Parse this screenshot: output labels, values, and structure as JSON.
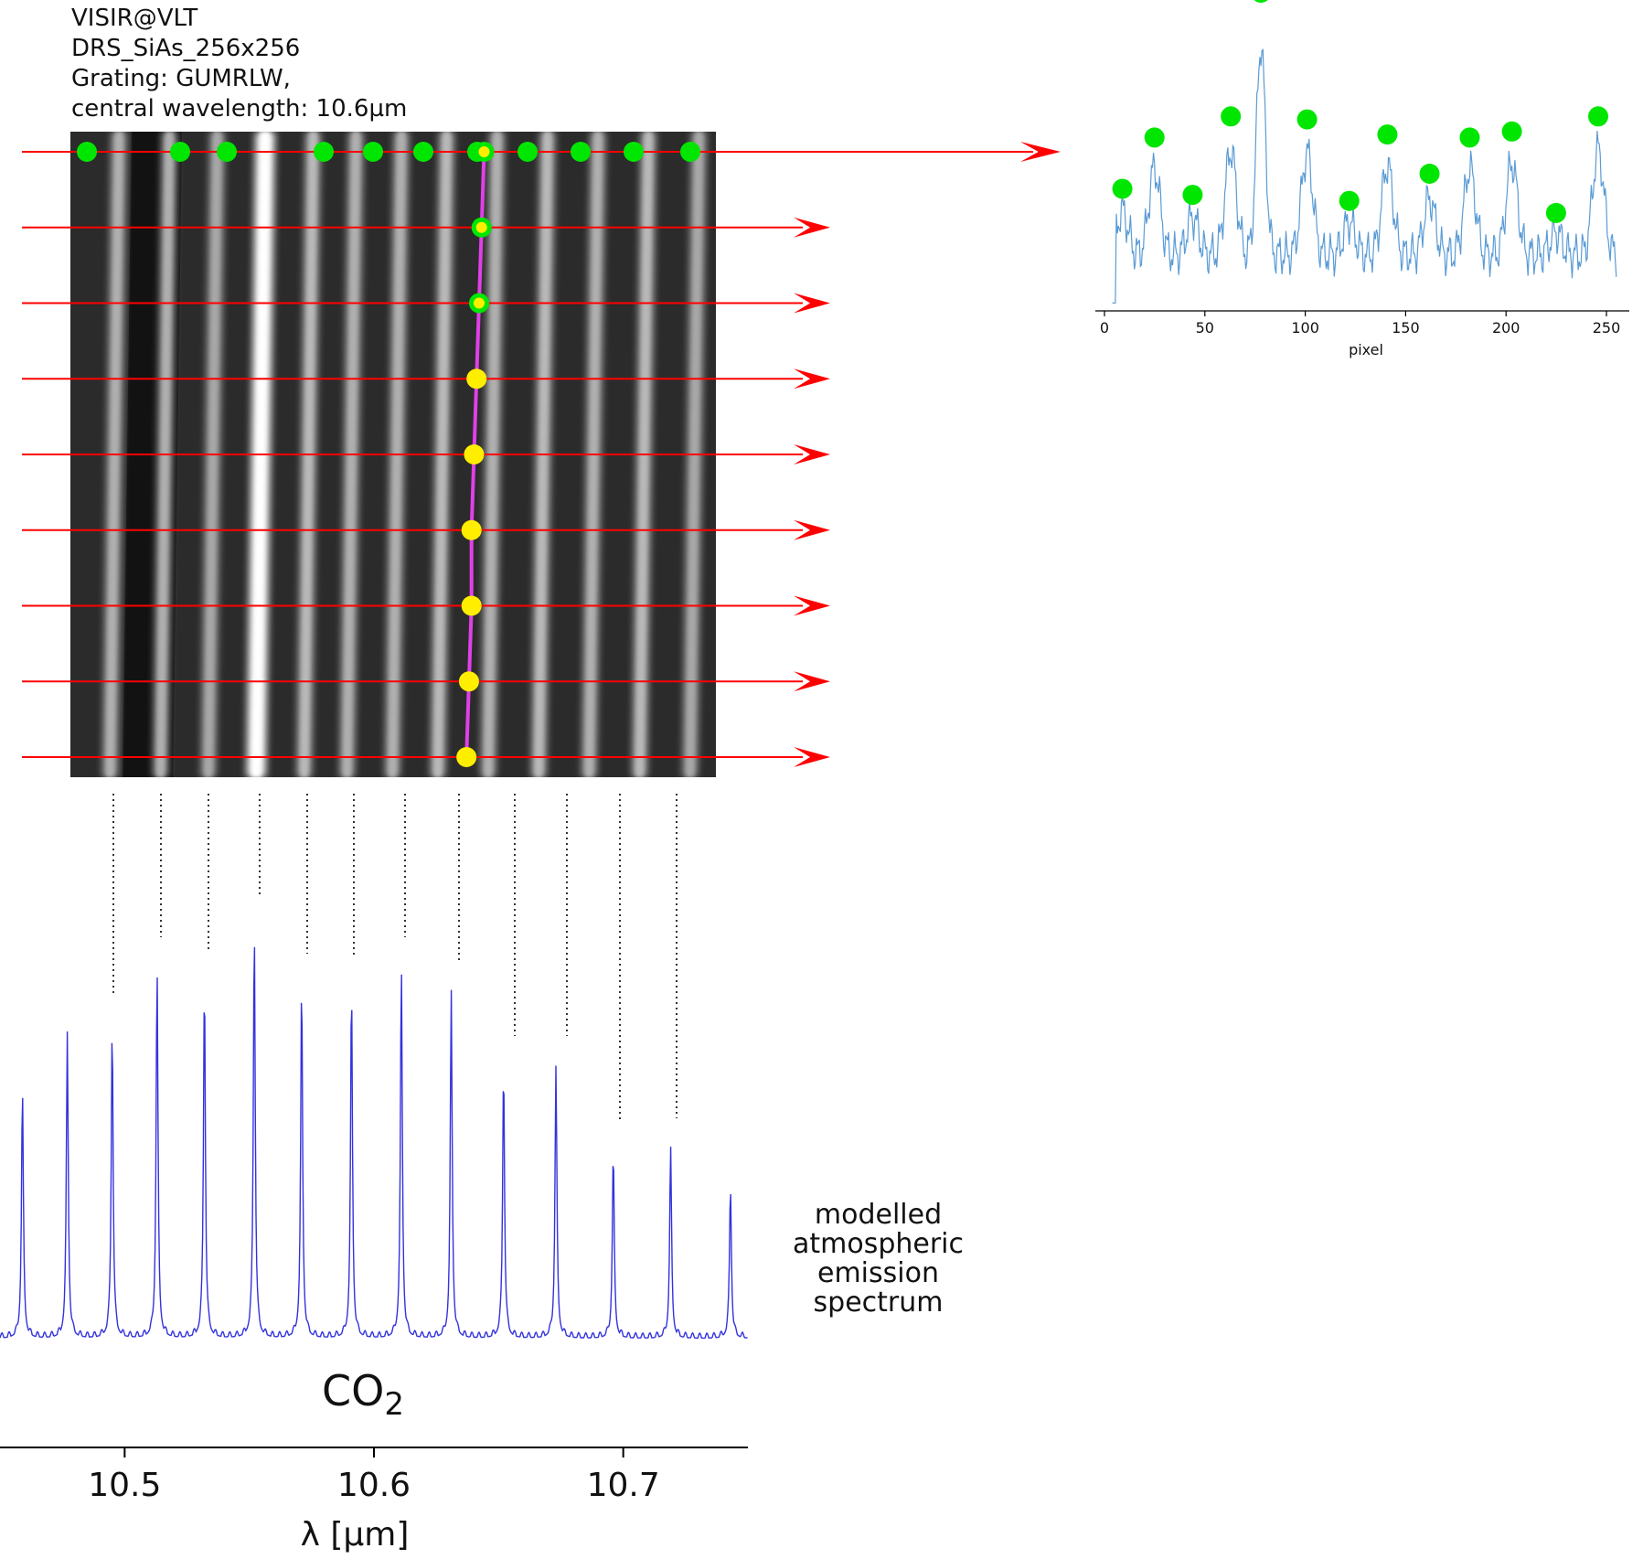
{
  "header": {
    "instrument": "VISIR@VLT",
    "detector": "DRS_SiAs_256x256",
    "grating": "Grating: GUMRLW,",
    "wavelength": "central wavelength: 10.6µm"
  },
  "model_label": [
    "modelled",
    "atmospheric",
    "emission",
    "spectrum"
  ],
  "molecule_label": {
    "main": "CO",
    "sub": "2"
  },
  "colors": {
    "arrow": "#ff0000",
    "trace_line": "#e040e8",
    "detected_line": "#00e600",
    "traced_point": "#ffee00",
    "spectrum": "#3333dd",
    "profile": "#5b9bd5",
    "guide": "#000000"
  },
  "chart_data": [
    {
      "type": "line",
      "name": "row-profile",
      "xlabel": "pixel",
      "ylabel": "",
      "xlim": [
        0,
        255
      ],
      "xticks": [
        "0",
        "50",
        "100",
        "150",
        "200",
        "250"
      ],
      "xtick_values": [
        0,
        50,
        100,
        150,
        200,
        250
      ],
      "peaks": [
        {
          "x": 8,
          "y": 0.35
        },
        {
          "x": 24,
          "y": 0.52
        },
        {
          "x": 43,
          "y": 0.33
        },
        {
          "x": 62,
          "y": 0.59
        },
        {
          "x": 77,
          "y": 1.0
        },
        {
          "x": 100,
          "y": 0.58
        },
        {
          "x": 121,
          "y": 0.31
        },
        {
          "x": 140,
          "y": 0.53
        },
        {
          "x": 161,
          "y": 0.4
        },
        {
          "x": 181,
          "y": 0.52
        },
        {
          "x": 202,
          "y": 0.54
        },
        {
          "x": 224,
          "y": 0.27
        },
        {
          "x": 245,
          "y": 0.59
        }
      ],
      "detected_peaks_x": [
        8,
        24,
        43,
        62,
        77,
        100,
        121,
        140,
        161,
        181,
        202,
        224,
        245
      ]
    },
    {
      "type": "line",
      "name": "modelled-emission-spectrum",
      "xlabel": "λ [µm]",
      "ylabel": "",
      "xlim": [
        10.45,
        10.75
      ],
      "xticks": [
        "10.5",
        "10.6",
        "10.7"
      ],
      "xtick_values": [
        10.5,
        10.6,
        10.7
      ],
      "lines": [
        {
          "wl": 10.459,
          "amp": 0.6
        },
        {
          "wl": 10.477,
          "amp": 0.74
        },
        {
          "wl": 10.495,
          "amp": 0.76
        },
        {
          "wl": 10.513,
          "amp": 0.9
        },
        {
          "wl": 10.532,
          "amp": 0.87
        },
        {
          "wl": 10.552,
          "amp": 1.0
        },
        {
          "wl": 10.571,
          "amp": 0.86
        },
        {
          "wl": 10.591,
          "amp": 0.85
        },
        {
          "wl": 10.611,
          "amp": 0.9
        },
        {
          "wl": 10.631,
          "amp": 0.84
        },
        {
          "wl": 10.652,
          "amp": 0.66
        },
        {
          "wl": 10.673,
          "amp": 0.66
        },
        {
          "wl": 10.696,
          "amp": 0.45
        },
        {
          "wl": 10.719,
          "amp": 0.46
        },
        {
          "wl": 10.743,
          "amp": 0.37
        }
      ],
      "matched_lines_wl": [
        10.495,
        10.513,
        10.532,
        10.552,
        10.571,
        10.591,
        10.611,
        10.631,
        10.652,
        10.673,
        10.696,
        10.719
      ]
    }
  ],
  "detector_image": {
    "bright_stripe_x": [
      20,
      40,
      59,
      78,
      97,
      114,
      132,
      150,
      170,
      190,
      210,
      230,
      250
    ],
    "bright_stripe_intensity": [
      0.55,
      0.55,
      0.5,
      1.0,
      0.6,
      0.55,
      0.55,
      0.6,
      0.55,
      0.6,
      0.55,
      0.6,
      0.5
    ],
    "traced_rows": [
      0,
      30,
      60,
      90,
      120,
      150,
      180,
      210,
      240
    ],
    "traced_x": [
      159,
      158,
      157,
      156,
      155,
      154,
      154,
      153,
      152
    ]
  }
}
